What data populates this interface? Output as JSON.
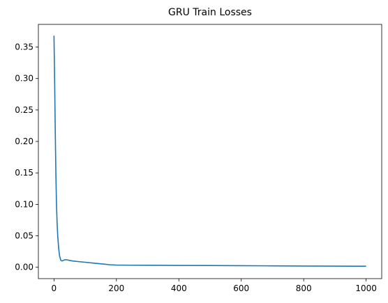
{
  "chart_data": {
    "type": "line",
    "title": "GRU Train Losses",
    "xlabel": "",
    "ylabel": "",
    "xlim": [
      -50,
      1050
    ],
    "ylim": [
      -0.018,
      0.386
    ],
    "x_ticks": [
      0,
      200,
      400,
      600,
      800,
      1000
    ],
    "x_tick_labels": [
      "0",
      "200",
      "400",
      "600",
      "800",
      "1000"
    ],
    "y_ticks": [
      0.0,
      0.05,
      0.1,
      0.15,
      0.2,
      0.25,
      0.3,
      0.35
    ],
    "y_tick_labels": [
      "0.00",
      "0.05",
      "0.10",
      "0.15",
      "0.20",
      "0.25",
      "0.30",
      "0.35"
    ],
    "grid": false,
    "legend": "none",
    "series": [
      {
        "color": "#1f77b4",
        "x": [
          0,
          2,
          4,
          6,
          8,
          10,
          12,
          15,
          18,
          22,
          26,
          30,
          35,
          40,
          45,
          50,
          60,
          80,
          100,
          120,
          140,
          160,
          180,
          200,
          250,
          300,
          400,
          500,
          600,
          700,
          800,
          900,
          1000
        ],
        "y": [
          0.368,
          0.3,
          0.22,
          0.15,
          0.1,
          0.07,
          0.05,
          0.03,
          0.018,
          0.011,
          0.01,
          0.011,
          0.012,
          0.012,
          0.0115,
          0.011,
          0.01,
          0.009,
          0.008,
          0.007,
          0.006,
          0.005,
          0.004,
          0.0035,
          0.0033,
          0.0032,
          0.003,
          0.0028,
          0.0025,
          0.0023,
          0.002,
          0.0018,
          0.0017
        ]
      }
    ]
  }
}
